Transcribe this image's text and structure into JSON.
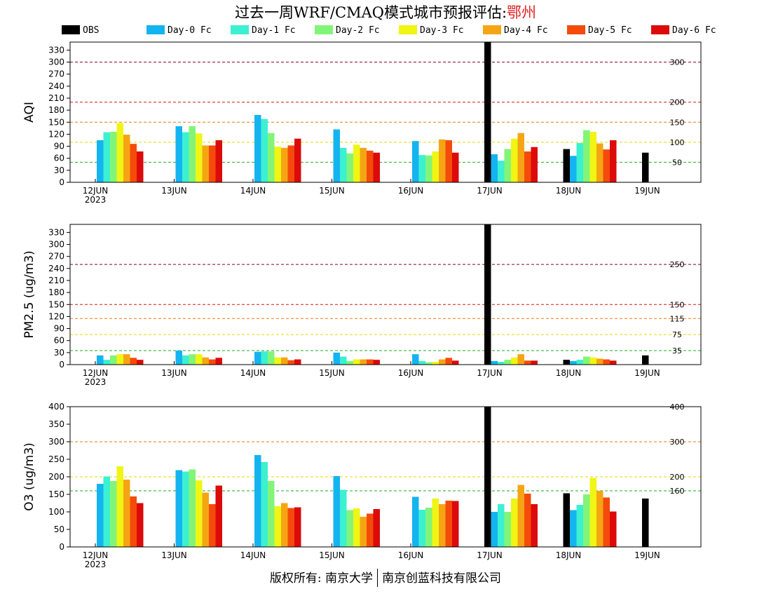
{
  "header": {
    "title_prefix": "过去一周WRF/CMAQ模式城市预报评估:",
    "city": "鄂州"
  },
  "footer": {
    "left": "版权所有: 南京大学",
    "right": "南京创蓝科技有限公司"
  },
  "colors": {
    "OBS": "#000000",
    "Day-0 Fc": "#14b4f0",
    "Day-1 Fc": "#3cf0d2",
    "Day-2 Fc": "#82f578",
    "Day-3 Fc": "#f0f514",
    "Day-4 Fc": "#f5a514",
    "Day-5 Fc": "#f54b0a",
    "Day-6 Fc": "#dc0a0a"
  },
  "chart_data": [
    {
      "type": "bar",
      "ylabel": "AQI",
      "ylim": [
        0,
        350
      ],
      "yticks": [
        0,
        30,
        60,
        90,
        120,
        150,
        180,
        210,
        240,
        270,
        300,
        330
      ],
      "x_tick_labels": [
        "12JUN",
        "13JUN",
        "14JUN",
        "15JUN",
        "16JUN",
        "17JUN",
        "18JUN",
        "19JUN"
      ],
      "x_year_label": "2023",
      "ref_lines": [
        {
          "value": 50,
          "label": "50",
          "color": "#22aa22"
        },
        {
          "value": 100,
          "label": "100",
          "color": "#e6d800"
        },
        {
          "value": 150,
          "label": "150",
          "color": "#ee7711"
        },
        {
          "value": 200,
          "label": "200",
          "color": "#dd1111"
        },
        {
          "value": 300,
          "label": "300",
          "color": "#880022"
        }
      ],
      "series": [
        {
          "name": "OBS",
          "values": [
            null,
            null,
            null,
            null,
            null,
            350,
            83,
            74
          ]
        },
        {
          "name": "Day-0 Fc",
          "values": [
            105,
            140,
            168,
            132,
            103,
            70,
            66,
            null
          ]
        },
        {
          "name": "Day-1 Fc",
          "values": [
            125,
            125,
            158,
            86,
            68,
            54,
            98,
            null
          ]
        },
        {
          "name": "Day-2 Fc",
          "values": [
            126,
            140,
            123,
            72,
            67,
            83,
            130,
            null
          ]
        },
        {
          "name": "Day-3 Fc",
          "values": [
            148,
            122,
            89,
            94,
            77,
            109,
            126,
            null
          ]
        },
        {
          "name": "Day-4 Fc",
          "values": [
            119,
            92,
            86,
            86,
            107,
            123,
            97,
            null
          ]
        },
        {
          "name": "Day-5 Fc",
          "values": [
            96,
            92,
            92,
            79,
            105,
            77,
            82,
            null
          ]
        },
        {
          "name": "Day-6 Fc",
          "values": [
            77,
            105,
            109,
            74,
            74,
            88,
            105,
            null
          ]
        }
      ]
    },
    {
      "type": "bar",
      "ylabel": "PM2.5 (ug/m3)",
      "ylim": [
        0,
        350
      ],
      "yticks": [
        0,
        30,
        60,
        90,
        120,
        150,
        180,
        210,
        240,
        270,
        300,
        330
      ],
      "x_tick_labels": [
        "12JUN",
        "13JUN",
        "14JUN",
        "15JUN",
        "16JUN",
        "17JUN",
        "18JUN",
        "19JUN"
      ],
      "x_year_label": "2023",
      "ref_lines": [
        {
          "value": 35,
          "label": "35",
          "color": "#22aa22"
        },
        {
          "value": 75,
          "label": "75",
          "color": "#e6d800"
        },
        {
          "value": 115,
          "label": "115",
          "color": "#ee7711"
        },
        {
          "value": 150,
          "label": "150",
          "color": "#dd1111"
        },
        {
          "value": 250,
          "label": "250",
          "color": "#880022"
        }
      ],
      "series": [
        {
          "name": "OBS",
          "values": [
            null,
            null,
            null,
            null,
            null,
            350,
            12,
            23
          ]
        },
        {
          "name": "Day-0 Fc",
          "values": [
            23,
            35,
            32,
            30,
            26,
            9,
            9,
            null
          ]
        },
        {
          "name": "Day-1 Fc",
          "values": [
            12,
            23,
            33,
            20,
            9,
            7,
            12,
            null
          ]
        },
        {
          "name": "Day-2 Fc",
          "values": [
            23,
            26,
            33,
            9,
            6,
            12,
            20,
            null
          ]
        },
        {
          "name": "Day-3 Fc",
          "values": [
            26,
            26,
            18,
            13,
            7,
            18,
            18,
            null
          ]
        },
        {
          "name": "Day-4 Fc",
          "values": [
            26,
            18,
            18,
            13,
            13,
            26,
            15,
            null
          ]
        },
        {
          "name": "Day-5 Fc",
          "values": [
            17,
            13,
            11,
            13,
            17,
            10,
            13,
            null
          ]
        },
        {
          "name": "Day-6 Fc",
          "values": [
            12,
            17,
            13,
            12,
            10,
            10,
            10,
            null
          ]
        }
      ]
    },
    {
      "type": "bar",
      "ylabel": "O3 (ug/m3)",
      "ylim": [
        0,
        400
      ],
      "yticks": [
        0,
        50,
        100,
        150,
        200,
        250,
        300,
        350,
        400
      ],
      "x_tick_labels": [
        "12JUN",
        "13JUN",
        "14JUN",
        "15JUN",
        "16JUN",
        "17JUN",
        "18JUN",
        "19JUN"
      ],
      "x_year_label": "2023",
      "ref_lines": [
        {
          "value": 160,
          "label": "160",
          "color": "#22aa22"
        },
        {
          "value": 200,
          "label": "200",
          "color": "#e6d800"
        },
        {
          "value": 300,
          "label": "300",
          "color": "#ee7711"
        },
        {
          "value": 400,
          "label": "400",
          "color": "#dd1111"
        }
      ],
      "series": [
        {
          "name": "OBS",
          "values": [
            null,
            null,
            null,
            null,
            null,
            400,
            153,
            138
          ]
        },
        {
          "name": "Day-0 Fc",
          "values": [
            180,
            219,
            262,
            202,
            143,
            100,
            105,
            null
          ]
        },
        {
          "name": "Day-1 Fc",
          "values": [
            201,
            215,
            242,
            163,
            106,
            122,
            120,
            null
          ]
        },
        {
          "name": "Day-2 Fc",
          "values": [
            188,
            221,
            188,
            105,
            112,
            100,
            150,
            null
          ]
        },
        {
          "name": "Day-3 Fc",
          "values": [
            230,
            190,
            116,
            110,
            138,
            138,
            197,
            null
          ]
        },
        {
          "name": "Day-4 Fc",
          "values": [
            192,
            155,
            125,
            86,
            122,
            177,
            160,
            null
          ]
        },
        {
          "name": "Day-5 Fc",
          "values": [
            144,
            122,
            111,
            95,
            132,
            152,
            141,
            null
          ]
        },
        {
          "name": "Day-6 Fc",
          "values": [
            125,
            175,
            113,
            108,
            131,
            122,
            101,
            null
          ]
        }
      ]
    }
  ]
}
